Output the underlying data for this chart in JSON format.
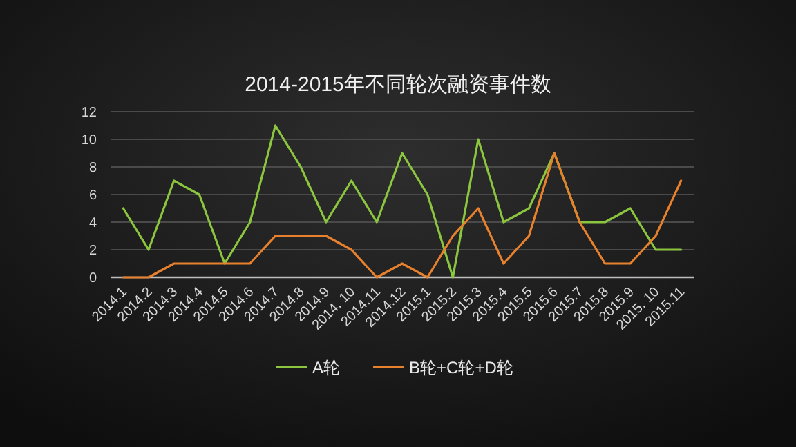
{
  "chart_data": {
    "type": "line",
    "title": "2014-2015年不同轮次融资事件数",
    "categories": [
      "2014.1",
      "2014.2",
      "2014.3",
      "2014.4",
      "2014.5",
      "2014.6",
      "2014.7",
      "2014.8",
      "2014.9",
      "2014. 10",
      "2014.11",
      "2014.12",
      "2015.1",
      "2015.2",
      "2015.3",
      "2015.4",
      "2015.5",
      "2015.6",
      "2015.7",
      "2015.8",
      "2015.9",
      "2015. 10",
      "2015.11"
    ],
    "series": [
      {
        "name": "A轮",
        "color": "#8cc63e",
        "values": [
          5,
          2,
          7,
          6,
          1,
          4,
          11,
          8,
          4,
          7,
          4,
          9,
          6,
          0,
          10,
          4,
          5,
          9,
          4,
          4,
          5,
          2,
          2
        ]
      },
      {
        "name": "B轮+C轮+D轮",
        "color": "#e8812e",
        "values": [
          0,
          0,
          1,
          1,
          1,
          1,
          3,
          3,
          3,
          2,
          0,
          1,
          0,
          3,
          5,
          1,
          3,
          9,
          4,
          1,
          1,
          3,
          7
        ]
      }
    ],
    "ylim": [
      0,
      12
    ],
    "yticks": [
      0,
      2,
      4,
      6,
      8,
      10,
      12
    ],
    "grid": "y",
    "legend": "bottom",
    "marker": "none",
    "line_style": "solid"
  }
}
